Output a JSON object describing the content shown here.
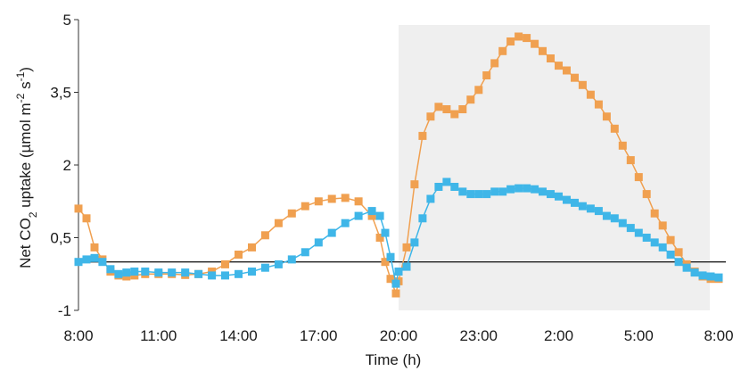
{
  "chart_data": {
    "type": "scatter",
    "xlabel": "Time (h)",
    "ylabel_parts": {
      "pre": "Net CO",
      "sub": "2",
      "mid": " uptake (µmol m",
      "sup1": "-2",
      "mid2": " s",
      "sup2": "-1",
      "post": ")"
    },
    "x_ticks": [
      "8:00",
      "11:00",
      "14:00",
      "17:00",
      "20:00",
      "23:00",
      "2:00",
      "5:00",
      "8:00"
    ],
    "y_ticks": [
      "-1",
      "0,5",
      "2",
      "3,5",
      "5"
    ],
    "ylim": [
      -1,
      5
    ],
    "xlim_hours": [
      0,
      24
    ],
    "night_shading": {
      "from_hour": 12,
      "to_hour": 24,
      "color": "#efefef"
    },
    "zero_line": 0,
    "series": [
      {
        "color": "#f0a050",
        "x": [
          0,
          0.3,
          0.6,
          0.9,
          1.2,
          1.5,
          1.8,
          2.1,
          2.5,
          3,
          3.5,
          4,
          4.5,
          5,
          5.5,
          6,
          6.5,
          7,
          7.5,
          8,
          8.5,
          9,
          9.5,
          10,
          10.5,
          11,
          11.3,
          11.5,
          11.7,
          11.9,
          12,
          12.3,
          12.6,
          12.9,
          13.2,
          13.5,
          13.8,
          14.1,
          14.4,
          14.7,
          15,
          15.3,
          15.6,
          15.9,
          16.2,
          16.5,
          16.8,
          17.1,
          17.4,
          17.7,
          18,
          18.3,
          18.6,
          18.9,
          19.2,
          19.5,
          19.8,
          20.1,
          20.4,
          20.7,
          21,
          21.3,
          21.6,
          21.9,
          22.2,
          22.5,
          22.8,
          23.1,
          23.4,
          23.7,
          24
        ],
        "y": [
          1.1,
          0.9,
          0.3,
          0.05,
          -0.2,
          -0.28,
          -0.3,
          -0.28,
          -0.25,
          -0.25,
          -0.25,
          -0.27,
          -0.25,
          -0.2,
          -0.05,
          0.15,
          0.3,
          0.55,
          0.8,
          1.0,
          1.15,
          1.25,
          1.3,
          1.32,
          1.25,
          0.95,
          0.5,
          0.0,
          -0.35,
          -0.65,
          -0.4,
          0.3,
          1.6,
          2.6,
          3.0,
          3.2,
          3.15,
          3.05,
          3.15,
          3.35,
          3.55,
          3.85,
          4.1,
          4.35,
          4.55,
          4.65,
          4.62,
          4.5,
          4.35,
          4.2,
          4.05,
          3.95,
          3.8,
          3.65,
          3.45,
          3.25,
          3.0,
          2.75,
          2.4,
          2.1,
          1.75,
          1.4,
          1.0,
          0.75,
          0.45,
          0.2,
          -0.05,
          -0.2,
          -0.3,
          -0.35,
          -0.35
        ]
      },
      {
        "color": "#3fb6e8",
        "x": [
          0,
          0.3,
          0.6,
          0.9,
          1.2,
          1.5,
          1.8,
          2.1,
          2.5,
          3,
          3.5,
          4,
          4.5,
          5,
          5.5,
          6,
          6.5,
          7,
          7.5,
          8,
          8.5,
          9,
          9.5,
          10,
          10.5,
          11,
          11.3,
          11.5,
          11.7,
          11.9,
          12,
          12.3,
          12.6,
          12.9,
          13.2,
          13.5,
          13.8,
          14.1,
          14.4,
          14.7,
          15,
          15.3,
          15.6,
          15.9,
          16.2,
          16.5,
          16.8,
          17.1,
          17.4,
          17.7,
          18,
          18.3,
          18.6,
          18.9,
          19.2,
          19.5,
          19.8,
          20.1,
          20.4,
          20.7,
          21,
          21.3,
          21.6,
          21.9,
          22.2,
          22.5,
          22.8,
          23.1,
          23.4,
          23.7,
          24
        ],
        "y": [
          0.0,
          0.05,
          0.08,
          0.0,
          -0.15,
          -0.25,
          -0.22,
          -0.2,
          -0.2,
          -0.22,
          -0.22,
          -0.22,
          -0.25,
          -0.28,
          -0.28,
          -0.25,
          -0.2,
          -0.12,
          -0.05,
          0.05,
          0.2,
          0.4,
          0.6,
          0.8,
          0.95,
          1.05,
          0.95,
          0.6,
          0.1,
          -0.45,
          -0.2,
          -0.1,
          0.4,
          0.9,
          1.3,
          1.55,
          1.65,
          1.55,
          1.45,
          1.4,
          1.4,
          1.4,
          1.45,
          1.45,
          1.5,
          1.52,
          1.52,
          1.5,
          1.45,
          1.4,
          1.35,
          1.28,
          1.22,
          1.15,
          1.1,
          1.05,
          0.95,
          0.9,
          0.8,
          0.7,
          0.6,
          0.5,
          0.4,
          0.3,
          0.15,
          0.0,
          -0.12,
          -0.22,
          -0.28,
          -0.3,
          -0.32
        ]
      }
    ]
  }
}
